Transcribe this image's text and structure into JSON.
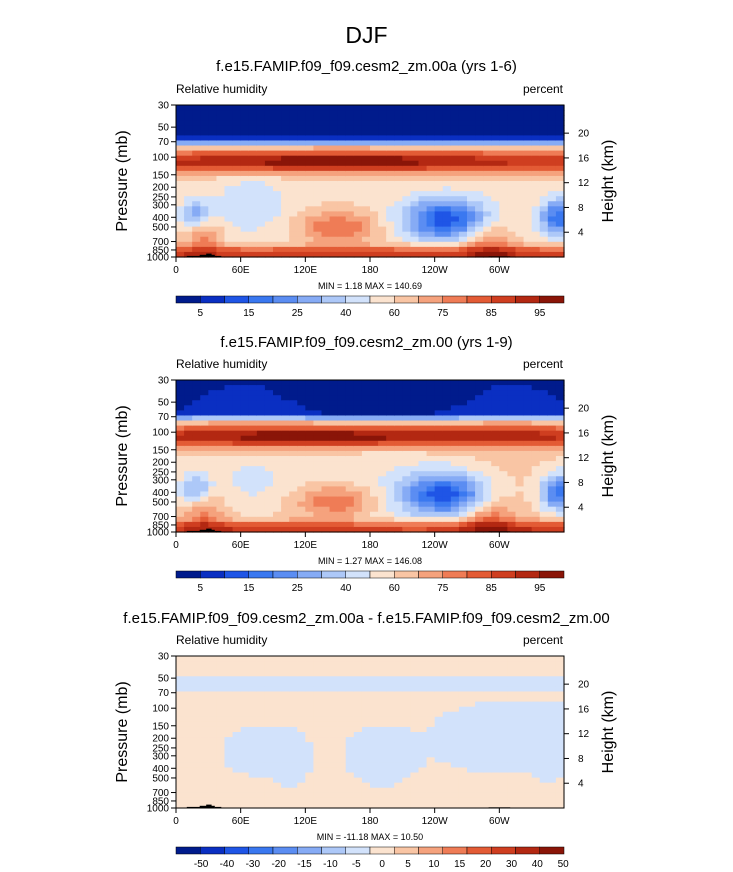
{
  "page": {
    "title": "DJF"
  },
  "colors": {
    "ocean_bg": "#fbe2cc",
    "terrain": "#000000",
    "diff_pos": "#fde4d2",
    "diff_neg": "#d6e6f8"
  },
  "panels": [
    {
      "title": "f.e15.FAMIP.f09_f09.cesm2_zm.00a (yrs 1-6)",
      "left_label": "Relative humidity",
      "right_label": "percent",
      "minmax": "MIN =   1.18  MAX = 140.69",
      "kind": "full"
    },
    {
      "title": "f.e15.FAMIP.f09_f09.cesm2_zm.00 (yrs 1-9)",
      "left_label": "Relative humidity",
      "right_label": "percent",
      "minmax": "MIN =   1.27  MAX = 146.08",
      "kind": "full"
    },
    {
      "title": "f.e15.FAMIP.f09_f09.cesm2_zm.00a - f.e15.FAMIP.f09_f09.cesm2_zm.00",
      "left_label": "Relative humidity",
      "right_label": "percent",
      "minmax": "MIN = -11.18  MAX =  10.50",
      "kind": "diff"
    }
  ],
  "chart_data": [
    {
      "type": "heatmap",
      "title": "f.e15.FAMIP.f09_f09.cesm2_zm.00a (yrs 1-6)",
      "ylabel": "Pressure (mb)",
      "ylabel_right": "Height (km)",
      "x_ticks": [
        "0",
        "60E",
        "120E",
        "180",
        "120W",
        "60W"
      ],
      "x_tick_lon": [
        0,
        60,
        120,
        180,
        240,
        300
      ],
      "xlim": [
        0,
        360
      ],
      "y_ticks": [
        "30",
        "50",
        "70",
        "100",
        "150",
        "200",
        "250",
        "300",
        "400",
        "500",
        "700",
        "850",
        "1000"
      ],
      "y_tick_p": [
        30,
        50,
        70,
        100,
        150,
        200,
        250,
        300,
        400,
        500,
        700,
        850,
        1000
      ],
      "ylim": [
        1000,
        30
      ],
      "y_scale": "log",
      "right_ticks": [
        "4",
        "8",
        "12",
        "16",
        "20"
      ],
      "right_tick_km": [
        4,
        8,
        12,
        16,
        20
      ],
      "colorbar_labels": [
        "5",
        "15",
        "25",
        "40",
        "60",
        "75",
        "85",
        "95"
      ],
      "colorbar_colors": [
        "#001b8c",
        "#0a2fc2",
        "#1f55e6",
        "#3a78f0",
        "#5b8df2",
        "#86abf5",
        "#adc8f8",
        "#d2e2fb",
        "#fbe3cf",
        "#f9c5a4",
        "#f5a27d",
        "#ef7c56",
        "#e35b35",
        "#cf3e20",
        "#b32812",
        "#8a1508"
      ],
      "colorbar_range": [
        0,
        100
      ]
    },
    {
      "type": "heatmap",
      "title": "f.e15.FAMIP.f09_f09.cesm2_zm.00 (yrs 1-9)",
      "ylabel": "Pressure (mb)",
      "ylabel_right": "Height (km)",
      "x_ticks": [
        "0",
        "60E",
        "120E",
        "180",
        "120W",
        "60W"
      ],
      "x_tick_lon": [
        0,
        60,
        120,
        180,
        240,
        300
      ],
      "xlim": [
        0,
        360
      ],
      "y_ticks": [
        "30",
        "50",
        "70",
        "100",
        "150",
        "200",
        "250",
        "300",
        "400",
        "500",
        "700",
        "850",
        "1000"
      ],
      "y_tick_p": [
        30,
        50,
        70,
        100,
        150,
        200,
        250,
        300,
        400,
        500,
        700,
        850,
        1000
      ],
      "ylim": [
        1000,
        30
      ],
      "y_scale": "log",
      "right_ticks": [
        "4",
        "8",
        "12",
        "16",
        "20"
      ],
      "right_tick_km": [
        4,
        8,
        12,
        16,
        20
      ],
      "colorbar_labels": [
        "5",
        "15",
        "25",
        "40",
        "60",
        "75",
        "85",
        "95"
      ],
      "colorbar_colors": [
        "#001b8c",
        "#0a2fc2",
        "#1f55e6",
        "#3a78f0",
        "#5b8df2",
        "#86abf5",
        "#adc8f8",
        "#d2e2fb",
        "#fbe3cf",
        "#f9c5a4",
        "#f5a27d",
        "#ef7c56",
        "#e35b35",
        "#cf3e20",
        "#b32812",
        "#8a1508"
      ],
      "colorbar_range": [
        0,
        100
      ]
    },
    {
      "type": "heatmap",
      "title": "f.e15.FAMIP.f09_f09.cesm2_zm.00a - f.e15.FAMIP.f09_f09.cesm2_zm.00",
      "ylabel": "Pressure (mb)",
      "ylabel_right": "Height (km)",
      "x_ticks": [
        "0",
        "60E",
        "120E",
        "180",
        "120W",
        "60W"
      ],
      "x_tick_lon": [
        0,
        60,
        120,
        180,
        240,
        300
      ],
      "xlim": [
        0,
        360
      ],
      "y_ticks": [
        "30",
        "50",
        "70",
        "100",
        "150",
        "200",
        "250",
        "300",
        "400",
        "500",
        "700",
        "850",
        "1000"
      ],
      "y_tick_p": [
        30,
        50,
        70,
        100,
        150,
        200,
        250,
        300,
        400,
        500,
        700,
        850,
        1000
      ],
      "ylim": [
        1000,
        30
      ],
      "y_scale": "log",
      "right_ticks": [
        "4",
        "8",
        "12",
        "16",
        "20"
      ],
      "right_tick_km": [
        4,
        8,
        12,
        16,
        20
      ],
      "colorbar_labels": [
        "-50",
        "-40",
        "-30",
        "-20",
        "-15",
        "-10",
        "-5",
        "0",
        "5",
        "10",
        "15",
        "20",
        "30",
        "40",
        "50"
      ],
      "colorbar_colors": [
        "#001b8c",
        "#0a2fc2",
        "#1f55e6",
        "#3a78f0",
        "#5b8df2",
        "#86abf5",
        "#adc8f8",
        "#d2e2fb",
        "#fbe3cf",
        "#f9c5a4",
        "#f5a27d",
        "#ef7c56",
        "#e35b35",
        "#cf3e20",
        "#b32812",
        "#8a1508"
      ],
      "colorbar_range": [
        -60,
        60
      ]
    }
  ]
}
